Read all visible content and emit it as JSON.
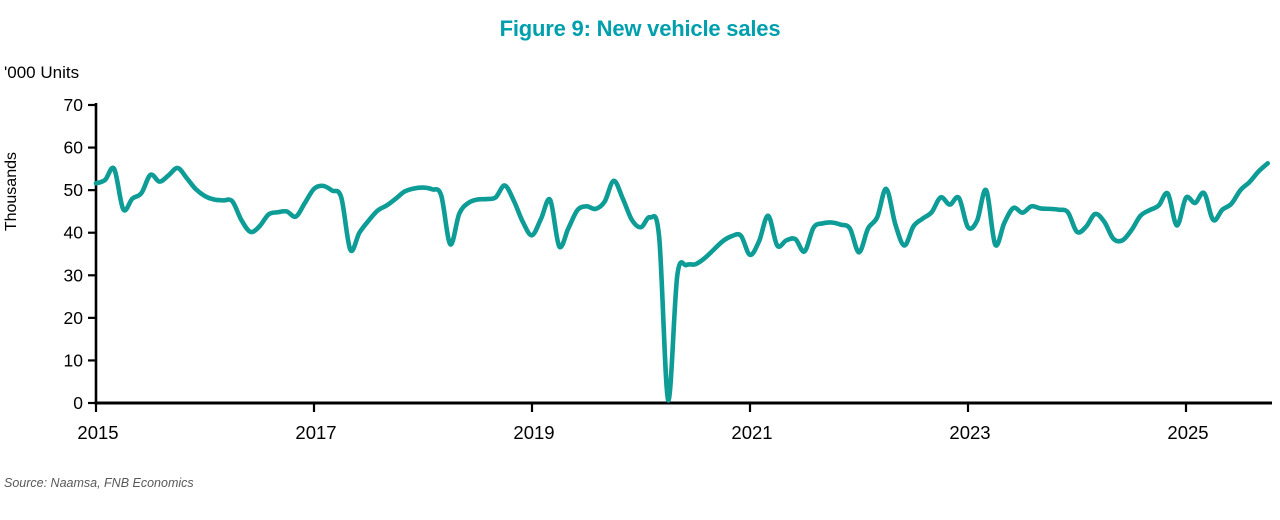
{
  "title": "Figure 9: New vehicle sales",
  "units_label": "'000 Units",
  "y_axis_title": "Thousands",
  "source": "Source: Naamsa, FNB Economics",
  "colors": {
    "line": "#0D9C96",
    "title": "#009FAD",
    "axis": "#000000",
    "tick_text": "#000000",
    "source_text": "#595959",
    "background": "#ffffff"
  },
  "chart_data": {
    "type": "line",
    "title": "Figure 9: New vehicle sales",
    "ylabel": "Thousands",
    "units": "'000 Units",
    "ylim": [
      0,
      70
    ],
    "yticks": [
      0,
      10,
      20,
      30,
      40,
      50,
      60,
      70
    ],
    "xticks": [
      "2015",
      "2017",
      "2019",
      "2021",
      "2023",
      "2025"
    ],
    "x_start": "2015-01",
    "x_end": "2025-10",
    "frequency": "monthly",
    "grid": false,
    "legend_position": "none",
    "series": [
      {
        "name": "New vehicle sales ('000 units)",
        "values": [
          51.6,
          52.4,
          55.0,
          45.5,
          48.0,
          49.3,
          53.6,
          52.0,
          53.5,
          55.2,
          52.8,
          50.2,
          48.6,
          47.8,
          47.6,
          47.4,
          43.0,
          40.2,
          41.5,
          44.3,
          44.8,
          45.0,
          43.8,
          47.0,
          50.3,
          51.0,
          49.9,
          48.3,
          36.0,
          40.0,
          42.8,
          45.2,
          46.4,
          48.0,
          49.7,
          50.4,
          50.6,
          50.2,
          48.8,
          37.3,
          44.5,
          47.0,
          47.8,
          47.9,
          48.3,
          51.1,
          47.5,
          42.5,
          39.4,
          43.3,
          47.7,
          36.8,
          41.0,
          45.3,
          46.2,
          45.6,
          47.3,
          52.2,
          48.0,
          43.0,
          41.3,
          43.6,
          39.0,
          0.6,
          30.0,
          32.4,
          32.6,
          34.0,
          36.0,
          38.0,
          39.2,
          39.3,
          34.8,
          38.0,
          44.0,
          37.0,
          38.2,
          38.5,
          35.6,
          41.2,
          42.2,
          42.4,
          41.9,
          41.0,
          35.4,
          41.0,
          43.6,
          50.3,
          42.0,
          37.0,
          41.5,
          43.3,
          44.8,
          48.3,
          46.6,
          48.2,
          41.3,
          42.8,
          50.0,
          37.2,
          42.3,
          45.8,
          44.7,
          46.2,
          45.7,
          45.6,
          45.4,
          44.8,
          40.2,
          41.4,
          44.4,
          42.6,
          38.6,
          38.2,
          40.6,
          44.0,
          45.3,
          46.4,
          49.2,
          41.7,
          48.2,
          47.0,
          49.3,
          43.0,
          45.4,
          46.8,
          50.0,
          51.9,
          54.4,
          56.3
        ]
      }
    ]
  }
}
